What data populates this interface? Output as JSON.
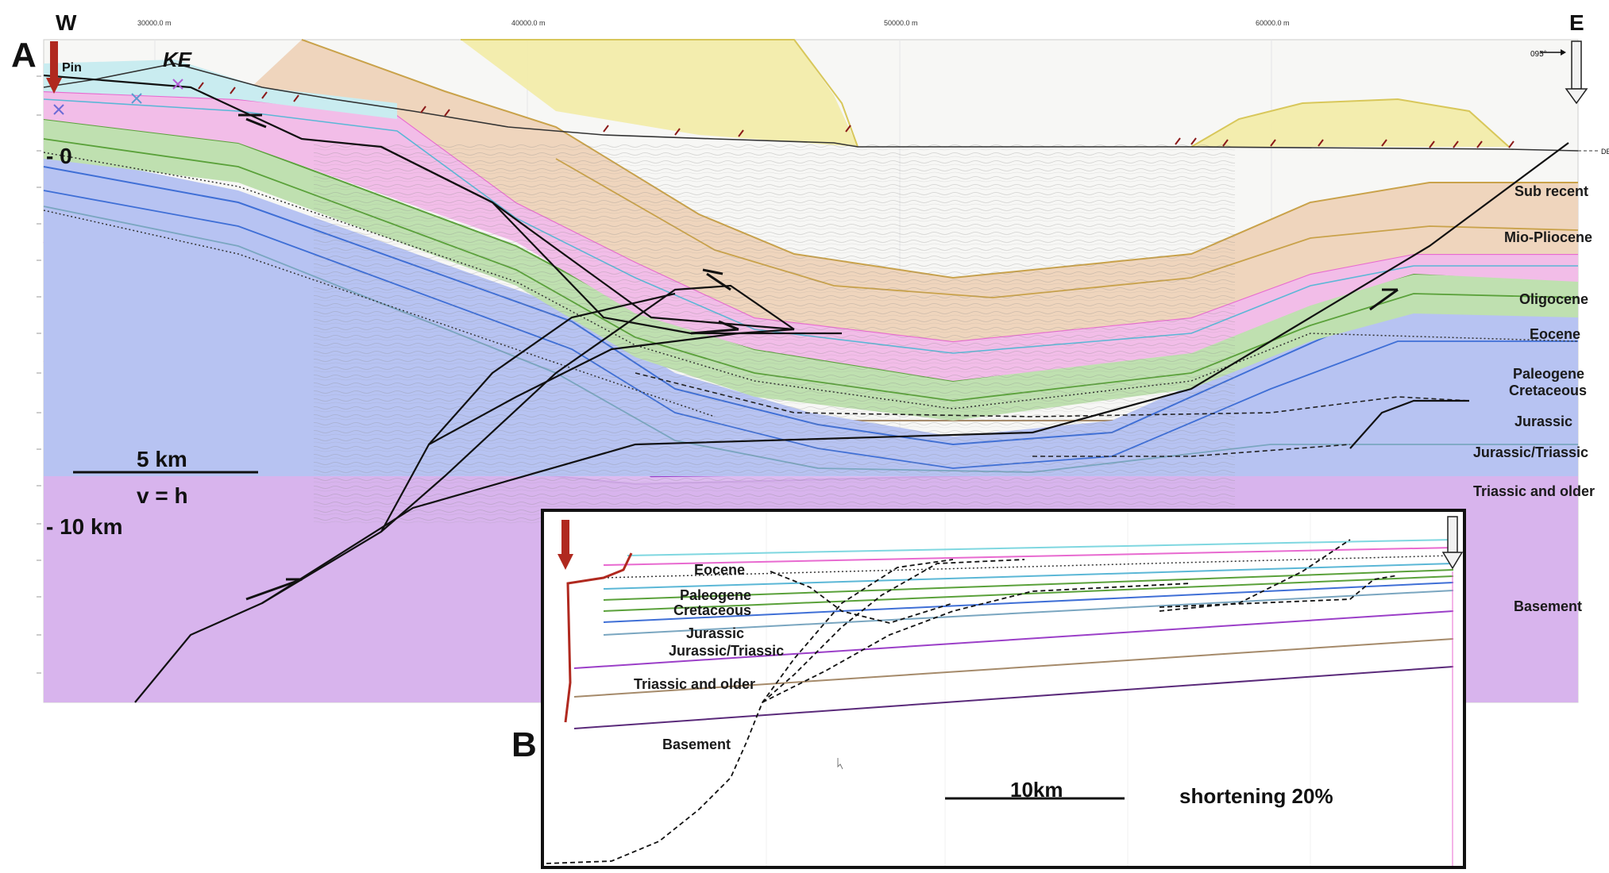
{
  "panel_a": {
    "letter": "A",
    "west": "W",
    "east": "E",
    "pin": "Pin",
    "ke": "KE",
    "azimuth": "095°",
    "datum_tag": "DE",
    "depth_zero": "- 0",
    "depth_ten": "- 10 km",
    "scale_label": "5 km",
    "scale_ratio": "v = h",
    "x_ticks": [
      "30000.0 m",
      "40000.0 m",
      "50000.0 m",
      "60000.0 m"
    ],
    "units": [
      "Sub recent",
      "Mio-Pliocene",
      "Oligocene",
      "Eocene",
      "Paleogene",
      "Cretaceous",
      "Jurassic",
      "Jurassic/Triassic",
      "Triassic and older",
      "Basement"
    ]
  },
  "panel_b": {
    "letter": "B",
    "labels": [
      "Eocene",
      "Paleogene",
      "Cretaceous",
      "Jurassic",
      "Jurassic/Triassic",
      "Triassic and older",
      "Basement"
    ],
    "scale_label": "10km",
    "shortening": "shortening 20%"
  },
  "colors": {
    "pin_red": "#b0291f",
    "eocene": "#e86ad0",
    "paleogene": "#5aa13a",
    "jurassic": "#3f6fd6",
    "triassic": "#9b3fc8",
    "basement": "#5a2a7a"
  }
}
